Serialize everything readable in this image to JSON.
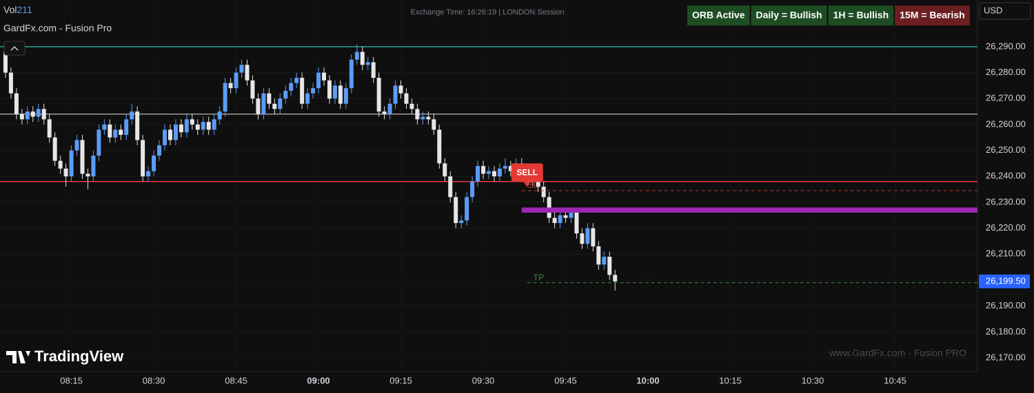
{
  "chart_data": {
    "type": "candlestick",
    "title": "GardFx.com - Fusion Pro",
    "indicator": {
      "name": "Vol",
      "value": 211
    },
    "exchange_time": "Exchange Time: 16:26:19 | LONDON Session",
    "badges": [
      {
        "text": "ORB Active",
        "color": "#1e4d24"
      },
      {
        "text": "Daily = Bullish",
        "color": "#1e4d24"
      },
      {
        "text": "1H = Bullish",
        "color": "#1e4d24"
      },
      {
        "text": "15M = Bearish",
        "color": "#6b1f22"
      }
    ],
    "currency": "USD",
    "watermark": "www.GardFx.com - Fusion PRO",
    "logo": "TradingView",
    "up_color": "#5b9cf6",
    "down_color": "#e6e6e6",
    "x": [
      "08:03",
      "08:04",
      "08:05",
      "08:06",
      "08:07",
      "08:08",
      "08:09",
      "08:10",
      "08:11",
      "08:12",
      "08:13",
      "08:14",
      "08:15",
      "08:16",
      "08:17",
      "08:18",
      "08:19",
      "08:20",
      "08:21",
      "08:22",
      "08:23",
      "08:24",
      "08:25",
      "08:26",
      "08:27",
      "08:28",
      "08:29",
      "08:30",
      "08:31",
      "08:32",
      "08:33",
      "08:34",
      "08:35",
      "08:36",
      "08:37",
      "08:38",
      "08:39",
      "08:40",
      "08:41",
      "08:42",
      "08:43",
      "08:44",
      "08:45",
      "08:46",
      "08:47",
      "08:48",
      "08:49",
      "08:50",
      "08:51",
      "08:52",
      "08:53",
      "08:54",
      "08:55",
      "08:56",
      "08:57",
      "08:58",
      "08:59",
      "09:00",
      "09:01",
      "09:02",
      "09:03",
      "09:04",
      "09:05",
      "09:06",
      "09:07",
      "09:08",
      "09:09",
      "09:10",
      "09:11",
      "09:12",
      "09:13",
      "09:14",
      "09:15",
      "09:16",
      "09:17",
      "09:18",
      "09:19",
      "09:20",
      "09:21",
      "09:22",
      "09:23",
      "09:24",
      "09:25",
      "09:26",
      "09:27",
      "09:28",
      "09:29",
      "09:30",
      "09:31",
      "09:32",
      "09:33",
      "09:34",
      "09:35",
      "09:36",
      "09:37",
      "09:38",
      "09:39",
      "09:40",
      "09:41",
      "09:42",
      "09:43",
      "09:44",
      "09:45",
      "09:46",
      "09:47",
      "09:48",
      "09:49",
      "09:50",
      "09:51",
      "09:52",
      "09:53",
      "09:54"
    ],
    "open": [
      26288,
      26280,
      26272,
      26264,
      26262,
      26265,
      26263,
      26266,
      26262,
      26255,
      26246,
      26243,
      26240,
      26250,
      26254,
      26241,
      26240,
      26248,
      26258,
      26260,
      26255,
      26258,
      26256,
      26262,
      26265,
      26254,
      26240,
      26242,
      26248,
      26252,
      26258,
      26254,
      26260,
      26257,
      26262,
      26260,
      26258,
      26261,
      26258,
      26262,
      26265,
      26276,
      26274,
      26280,
      26283,
      26277,
      26270,
      26264,
      26272,
      26268,
      26266,
      26270,
      26273,
      26276,
      26278,
      26268,
      26272,
      26274,
      26280,
      26277,
      26270,
      26275,
      26268,
      26274,
      26285,
      26288,
      26283,
      26284,
      26278,
      26265,
      26264,
      26268,
      26275,
      26272,
      26268,
      26266,
      26262,
      26263,
      26262,
      26258,
      26245,
      26240,
      26232,
      26222,
      26223,
      26232,
      26238,
      26244,
      26241,
      26242,
      26240,
      26243,
      26244,
      26242,
      26245,
      26242,
      26240,
      26238,
      26236,
      26232,
      26224,
      26222,
      26225,
      26224,
      26226,
      26218,
      26214,
      26220,
      26213,
      26206,
      26209,
      26202
    ],
    "high": [
      26290,
      26282,
      26274,
      26266,
      26267,
      26267,
      26268,
      26268,
      26264,
      26257,
      26248,
      26245,
      26252,
      26256,
      26256,
      26243,
      26250,
      26260,
      26262,
      26262,
      26260,
      26260,
      26264,
      26268,
      26267,
      26256,
      26244,
      26250,
      26254,
      26260,
      26260,
      26262,
      26262,
      26264,
      26264,
      26262,
      26263,
      26263,
      26264,
      26267,
      26278,
      26278,
      26282,
      26285,
      26285,
      26279,
      26272,
      26274,
      26274,
      26270,
      26272,
      26275,
      26278,
      26280,
      26280,
      26274,
      26276,
      26282,
      26282,
      26279,
      26277,
      26277,
      26276,
      26287,
      26291,
      26290,
      26286,
      26286,
      26280,
      26267,
      26270,
      26277,
      26277,
      26274,
      26270,
      26268,
      26265,
      26265,
      26264,
      26260,
      26247,
      26242,
      26234,
      26225,
      26234,
      26240,
      26246,
      26246,
      26244,
      26244,
      26245,
      26247,
      26246,
      26247,
      26247,
      26244,
      26242,
      26240,
      26238,
      26234,
      26226,
      26227,
      26227,
      26228,
      26228,
      26220,
      26222,
      26222,
      26215,
      26211,
      26211,
      26204
    ],
    "low": [
      26278,
      26270,
      26262,
      26260,
      26260,
      26261,
      26261,
      26260,
      26253,
      26244,
      26241,
      26236,
      26238,
      26248,
      26239,
      26235,
      26238,
      26246,
      26256,
      26253,
      26253,
      26254,
      26254,
      26260,
      26252,
      26238,
      26238,
      26240,
      26246,
      26250,
      26252,
      26252,
      26255,
      26255,
      26258,
      26256,
      26256,
      26256,
      26256,
      26260,
      26263,
      26272,
      26272,
      26278,
      26275,
      26268,
      26262,
      26262,
      26266,
      26264,
      26264,
      26268,
      26271,
      26274,
      26266,
      26266,
      26270,
      26272,
      26275,
      26268,
      26268,
      26266,
      26266,
      26272,
      26283,
      26281,
      26281,
      26276,
      26263,
      26262,
      26262,
      26266,
      26270,
      26266,
      26264,
      26260,
      26260,
      26260,
      26256,
      26243,
      26238,
      26230,
      26220,
      26220,
      26221,
      26230,
      26236,
      26239,
      26239,
      26238,
      26238,
      26241,
      26240,
      26240,
      26240,
      26238,
      26236,
      26234,
      26230,
      26222,
      26220,
      26220,
      26222,
      26222,
      26216,
      26212,
      26212,
      26211,
      26204,
      26204,
      26200,
      26196
    ],
    "close": [
      26280,
      26272,
      26264,
      26262,
      26265,
      26263,
      26266,
      26262,
      26255,
      26246,
      26243,
      26240,
      26250,
      26254,
      26241,
      26240,
      26248,
      26258,
      26260,
      26255,
      26258,
      26256,
      26262,
      26265,
      26254,
      26240,
      26242,
      26248,
      26252,
      26258,
      26254,
      26260,
      26257,
      26262,
      26260,
      26258,
      26261,
      26258,
      26262,
      26265,
      26276,
      26274,
      26280,
      26283,
      26277,
      26270,
      26264,
      26272,
      26268,
      26266,
      26270,
      26273,
      26276,
      26278,
      26268,
      26272,
      26274,
      26280,
      26277,
      26270,
      26275,
      26268,
      26274,
      26285,
      26288,
      26283,
      26284,
      26278,
      26265,
      26264,
      26268,
      26275,
      26272,
      26268,
      26266,
      26262,
      26263,
      26262,
      26258,
      26245,
      26240,
      26232,
      26222,
      26223,
      26232,
      26238,
      26244,
      26241,
      26242,
      26240,
      26243,
      26244,
      26242,
      26245,
      26242,
      26240,
      26238,
      26236,
      26232,
      26224,
      26222,
      26225,
      26224,
      26226,
      26218,
      26214,
      26220,
      26213,
      26206,
      26209,
      26202,
      26199.5
    ],
    "xlim": [
      "08:02",
      "11:00"
    ],
    "xticks": [
      "08:15",
      "08:30",
      "08:45",
      "09:00",
      "09:15",
      "09:30",
      "09:45",
      "10:00",
      "10:15",
      "10:30",
      "10:45"
    ],
    "ylim": [
      26164.7,
      26308
    ],
    "yticks": [
      {
        "value": 26170,
        "label": "26,170.00"
      },
      {
        "value": 26180,
        "label": "26,180.00"
      },
      {
        "value": 26190,
        "label": "26,190.00"
      },
      {
        "value": 26200,
        "label": "26,200.00"
      },
      {
        "value": 26210,
        "label": "26,210.00"
      },
      {
        "value": 26220,
        "label": "26,220.00"
      },
      {
        "value": 26230,
        "label": "26,230.00"
      },
      {
        "value": 26240,
        "label": "26,240.00"
      },
      {
        "value": 26250,
        "label": "26,250.00"
      },
      {
        "value": 26260,
        "label": "26,260.00"
      },
      {
        "value": 26270,
        "label": "26,270.00"
      },
      {
        "value": 26280,
        "label": "26,280.00"
      },
      {
        "value": 26290,
        "label": "26,290.00"
      }
    ],
    "grid": true,
    "levels": [
      {
        "value": 26290,
        "color": "#26a69a"
      },
      {
        "value": 26264,
        "color": "#9e9e9e"
      },
      {
        "value": 26238,
        "color": "#f23645"
      }
    ],
    "stop_loss": {
      "label": "SL",
      "value": 26234.5,
      "from": "09:37",
      "color": "#b33a3a"
    },
    "take_profit": {
      "label": "TP",
      "value": 26199,
      "from": "09:38",
      "color": "#3f8f3f"
    },
    "zone": {
      "from": "09:37",
      "low": 26226,
      "high": 26228,
      "color": "#9c27b0"
    },
    "signal": {
      "label": "SELL",
      "x": "09:38",
      "value": 26236,
      "color": "#e53935"
    },
    "last_price": {
      "value": 26199.5,
      "label": "26,199.50",
      "color": "#2962ff"
    }
  }
}
